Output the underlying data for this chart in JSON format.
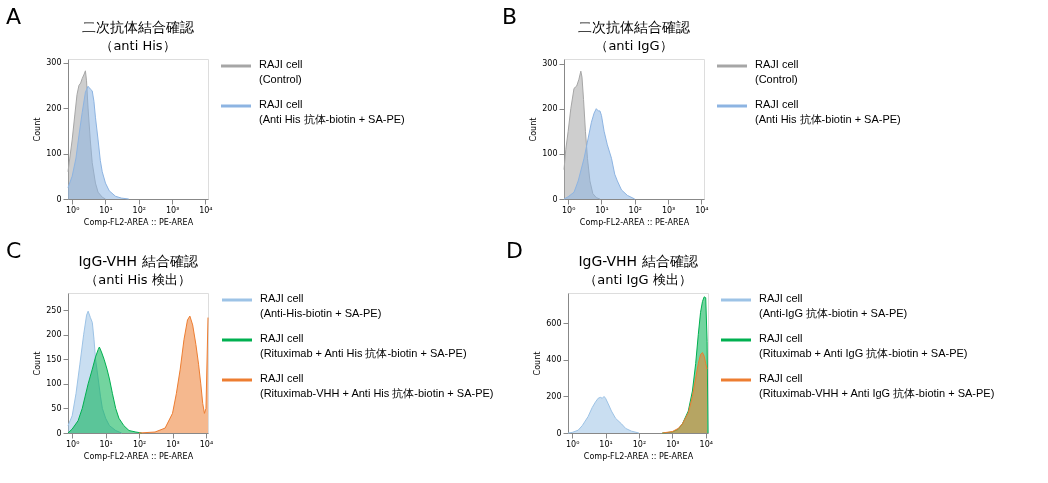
{
  "chart_data": [
    {
      "type": "area",
      "title": "二次抗体結合確認",
      "subtitle": "（anti His）",
      "xlabel": "Comp-FL2-AREA :: PE-AREA",
      "ylabel": "Count",
      "annotations": [
        "A"
      ],
      "log": "x",
      "grid": false,
      "legend": "right",
      "xlim": [
        0.75,
        12000
      ],
      "xticks": [
        {
          "value": 1,
          "label": "10⁰"
        },
        {
          "value": 10,
          "label": "10¹"
        },
        {
          "value": 100,
          "label": "10²"
        },
        {
          "value": 1000,
          "label": "10³"
        },
        {
          "value": 10000,
          "label": "10⁴"
        }
      ],
      "ylim": [
        0,
        308
      ],
      "yticks": [
        0,
        100,
        200,
        300
      ],
      "series": [
        {
          "name": "RAJI cell\n(Control)",
          "color": "#a6a6a6",
          "x": [
            0.75,
            0.85,
            1,
            1.2,
            1.4,
            1.6,
            1.8,
            2.0,
            2.3,
            2.5,
            2.7,
            3.0,
            3.5,
            4,
            5,
            6,
            8,
            10
          ],
          "values": [
            60,
            90,
            130,
            185,
            230,
            250,
            255,
            265,
            275,
            282,
            260,
            200,
            130,
            80,
            35,
            15,
            4,
            0
          ]
        },
        {
          "name": "RAJI cell\n(Anti His 抗体-biotin + SA-PE)",
          "color": "#8db4e2",
          "x": [
            0.75,
            1,
            1.3,
            1.6,
            2,
            2.5,
            3,
            3.5,
            4,
            4.5,
            5,
            6,
            7,
            8,
            10,
            13,
            20,
            30,
            50
          ],
          "values": [
            25,
            50,
            90,
            140,
            190,
            235,
            248,
            242,
            238,
            215,
            180,
            130,
            85,
            60,
            35,
            18,
            6,
            2,
            0
          ]
        }
      ]
    },
    {
      "type": "area",
      "title": "二次抗体結合確認",
      "subtitle": "（anti IgG）",
      "xlabel": "Comp-FL2-AREA :: PE-AREA",
      "ylabel": "Count",
      "annotations": [
        "B"
      ],
      "log": "x",
      "grid": false,
      "legend": "right",
      "xlim": [
        0.75,
        12000
      ],
      "xticks": [
        {
          "value": 1,
          "label": "10⁰"
        },
        {
          "value": 10,
          "label": "10¹"
        },
        {
          "value": 100,
          "label": "10²"
        },
        {
          "value": 1000,
          "label": "10³"
        },
        {
          "value": 10000,
          "label": "10⁴"
        }
      ],
      "ylim": [
        0,
        310
      ],
      "yticks": [
        0,
        100,
        200,
        300
      ],
      "series": [
        {
          "name": "RAJI cell\n(Control)",
          "color": "#a6a6a6",
          "x": [
            0.75,
            0.85,
            1,
            1.2,
            1.5,
            1.8,
            2.1,
            2.4,
            2.6,
            2.9,
            3.3,
            3.8,
            4.5,
            5.5,
            7,
            9
          ],
          "values": [
            65,
            110,
            150,
            200,
            245,
            250,
            265,
            283,
            270,
            220,
            150,
            90,
            40,
            12,
            3,
            0
          ]
        },
        {
          "name": "RAJI cell\n(Anti His 抗体-biotin + SA-PE)",
          "color": "#8db4e2",
          "x": [
            0.75,
            1,
            1.5,
            2,
            3,
            4,
            5,
            6,
            7,
            8,
            9,
            10,
            12,
            15,
            20,
            25,
            30,
            40,
            60,
            100
          ],
          "values": [
            0,
            5,
            15,
            40,
            90,
            135,
            170,
            190,
            200,
            195,
            195,
            185,
            150,
            120,
            90,
            55,
            40,
            20,
            8,
            0
          ]
        }
      ]
    },
    {
      "type": "area",
      "title": "IgG-VHH 結合確認",
      "subtitle": "（anti His 検出）",
      "xlabel": "Comp-FL2-AREA :: PE-AREA",
      "ylabel": "Count",
      "annotations": [
        "C"
      ],
      "log": "x",
      "grid": false,
      "legend": "right",
      "xlim": [
        0.75,
        11500
      ],
      "xticks": [
        {
          "value": 1,
          "label": "10⁰"
        },
        {
          "value": 10,
          "label": "10¹"
        },
        {
          "value": 100,
          "label": "10²"
        },
        {
          "value": 1000,
          "label": "10³"
        },
        {
          "value": 10000,
          "label": "10⁴"
        }
      ],
      "ylim": [
        0,
        285
      ],
      "yticks": [
        0,
        50,
        100,
        150,
        200,
        250
      ],
      "series": [
        {
          "name": "RAJI cell\n(Anti-His-biotin + SA-PE)",
          "color": "#9dc3e6",
          "x": [
            0.75,
            1,
            1.3,
            1.7,
            2.2,
            2.7,
            3.0,
            3.5,
            4,
            4.5,
            5,
            6,
            7,
            8,
            10,
            13,
            20,
            30
          ],
          "values": [
            15,
            35,
            80,
            140,
            200,
            240,
            248,
            235,
            225,
            190,
            150,
            110,
            75,
            50,
            30,
            15,
            5,
            0
          ]
        },
        {
          "name": "RAJI cell\n(Rituximab + Anti His 抗体-biotin + SA-PE)",
          "color": "#00b050",
          "x": [
            0.75,
            1,
            1.5,
            2,
            3,
            4,
            5,
            6,
            6.5,
            7.5,
            9,
            11,
            13,
            16,
            20,
            25,
            35,
            50,
            80,
            120
          ],
          "values": [
            0,
            8,
            25,
            50,
            100,
            130,
            155,
            170,
            175,
            165,
            150,
            130,
            110,
            80,
            50,
            30,
            15,
            5,
            2,
            0
          ]
        },
        {
          "name": "RAJI cell\n(Rituximab-VHH + Anti His 抗体-biotin + SA-PE)",
          "color": "#ed7d31",
          "x": [
            100,
            300,
            600,
            1000,
            1300,
            1700,
            2200,
            2800,
            3300,
            4000,
            5000,
            6000,
            7000,
            8000,
            9000,
            10000,
            11500
          ],
          "values": [
            0,
            2,
            10,
            40,
            80,
            130,
            190,
            230,
            238,
            220,
            180,
            140,
            100,
            60,
            40,
            50,
            235
          ]
        }
      ]
    },
    {
      "type": "area",
      "title": "IgG-VHH 結合確認",
      "subtitle": "（anti IgG 検出）",
      "xlabel": "Comp-FL2-AREA :: PE-AREA",
      "ylabel": "Count",
      "annotations": [
        "D"
      ],
      "log": "x",
      "grid": false,
      "legend": "right",
      "xlim": [
        0.75,
        11700
      ],
      "xticks": [
        {
          "value": 1,
          "label": "10⁰"
        },
        {
          "value": 10,
          "label": "10¹"
        },
        {
          "value": 100,
          "label": "10²"
        },
        {
          "value": 1000,
          "label": "10³"
        },
        {
          "value": 10000,
          "label": "10⁴"
        }
      ],
      "ylim": [
        0,
        766
      ],
      "yticks": [
        0,
        200,
        400,
        600
      ],
      "series": [
        {
          "name": "RAJI cell\n(Anti-IgG 抗体-biotin + SA-PE)",
          "color": "#9dc3e6",
          "x": [
            0.75,
            1,
            1.5,
            2,
            3,
            4,
            5,
            6,
            7,
            8,
            9,
            10,
            12,
            15,
            20,
            30,
            40,
            60,
            100
          ],
          "values": [
            0,
            3,
            15,
            40,
            90,
            140,
            170,
            190,
            195,
            190,
            200,
            190,
            160,
            120,
            80,
            50,
            25,
            10,
            0
          ]
        },
        {
          "name": "RAJI cell\n(Rituximab + Anti IgG 抗体-biotin + SA-PE)",
          "color": "#00b050",
          "x": [
            500,
            1000,
            1500,
            2000,
            3000,
            4000,
            5000,
            6000,
            7000,
            8000,
            9000,
            10000,
            11000,
            11700
          ],
          "values": [
            0,
            5,
            20,
            50,
            120,
            230,
            380,
            540,
            660,
            720,
            745,
            740,
            500,
            0
          ]
        },
        {
          "name": "RAJI cell\n(Rituximab-VHH + Anti IgG 抗体-biotin + SA-PE)",
          "color": "#ed7d31",
          "x": [
            500,
            1000,
            1500,
            2000,
            3000,
            4000,
            5000,
            6000,
            7000,
            8000,
            9000,
            10000,
            11000
          ],
          "values": [
            0,
            8,
            25,
            50,
            110,
            200,
            300,
            380,
            430,
            440,
            420,
            380,
            350
          ]
        }
      ]
    }
  ]
}
